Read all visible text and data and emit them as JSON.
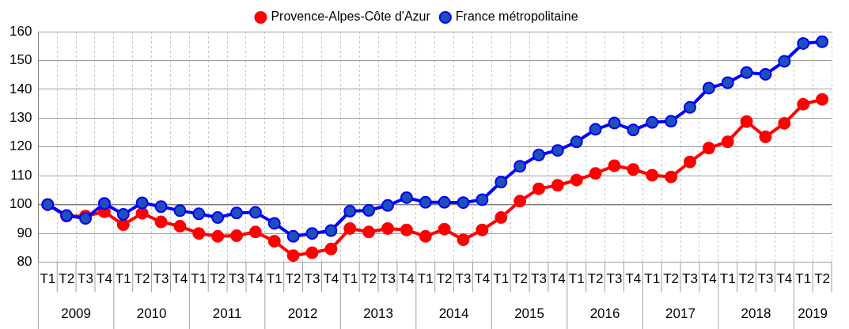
{
  "chart_data": {
    "type": "line",
    "categories": [
      "T1",
      "T2",
      "T3",
      "T4",
      "T1",
      "T2",
      "T3",
      "T4",
      "T1",
      "T2",
      "T3",
      "T4",
      "T1",
      "T2",
      "T3",
      "T4",
      "T1",
      "T2",
      "T3",
      "T4",
      "T1",
      "T2",
      "T3",
      "T4",
      "T1",
      "T2",
      "T3",
      "T4",
      "T1",
      "T2",
      "T3",
      "T4",
      "T1",
      "T2",
      "T3",
      "T4",
      "T1",
      "T2",
      "T3",
      "T4",
      "T1",
      "T2"
    ],
    "series": [
      {
        "name": "Provence-Alpes-Côte d'Azur",
        "color": "#ff0000",
        "values": [
          100,
          96,
          96,
          97.5,
          93,
          97,
          94,
          92.5,
          90,
          89,
          89.2,
          90.5,
          87.3,
          82.3,
          83.3,
          84.6,
          91.7,
          90.5,
          91.7,
          91.2,
          89,
          91.5,
          87.8,
          91.2,
          95.5,
          101.2,
          105.5,
          106.7,
          108.5,
          110.8,
          113.5,
          112.2,
          110.2,
          109.6,
          114.8,
          119.6,
          121.8,
          128.8,
          123.5,
          128.2,
          134.8,
          136.5
        ]
      },
      {
        "name": "France métropolitaine",
        "color": "#0000ff",
        "values": [
          100,
          96.2,
          95.2,
          100.4,
          96.6,
          100.6,
          99.3,
          97.9,
          96.8,
          95.5,
          97.1,
          97.3,
          93.5,
          89,
          90,
          91,
          97.7,
          98,
          99.7,
          102.4,
          100.8,
          100.8,
          100.7,
          101.7,
          107.8,
          113.3,
          117.2,
          118.8,
          121.8,
          126.1,
          128.3,
          125.9,
          128.5,
          128.9,
          133.7,
          140.4,
          142.3,
          145.8,
          145.2,
          149.7,
          155.9,
          156.5
        ]
      }
    ],
    "annotations": [
      "2009",
      "2010",
      "2011",
      "2012",
      "2013",
      "2014",
      "2015",
      "2016",
      "2017",
      "2018",
      "2019"
    ],
    "ylim": [
      80,
      160
    ],
    "yticks": [
      80,
      90,
      100,
      110,
      120,
      130,
      140,
      150,
      160
    ],
    "ref_lines": [
      {
        "axis": "y",
        "value": 100,
        "color": "#808080"
      }
    ],
    "grid": true,
    "legend": "top",
    "marker": "circle",
    "line_style": "solid"
  }
}
